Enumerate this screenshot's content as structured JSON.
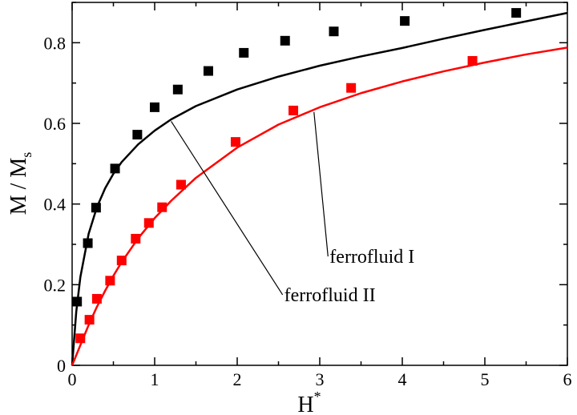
{
  "chart_data": {
    "type": "scatter",
    "xlabel": "H",
    "xlabel_sup": "*",
    "ylabel": "M / M",
    "ylabel_sub": "s",
    "xlim": [
      0,
      6
    ],
    "ylim": [
      0,
      0.9
    ],
    "xticks": [
      0,
      1,
      2,
      3,
      4,
      5,
      6
    ],
    "yticks": [
      0,
      0.2,
      0.4,
      0.6,
      0.8
    ],
    "xtick_labels": [
      "0",
      "1",
      "2",
      "3",
      "4",
      "5",
      "6"
    ],
    "ytick_labels": [
      "0",
      "0.2",
      "0.4",
      "0.6",
      "0.8"
    ],
    "grid": false,
    "series": [
      {
        "color": "#000000",
        "points": {
          "x": [
            0.06,
            0.19,
            0.29,
            0.52,
            0.79,
            1.0,
            1.28,
            1.65,
            2.08,
            2.58,
            3.17,
            4.03,
            5.38
          ],
          "y": [
            0.158,
            0.303,
            0.391,
            0.488,
            0.572,
            0.64,
            0.684,
            0.73,
            0.775,
            0.805,
            0.828,
            0.854,
            0.874
          ]
        },
        "curve": {
          "x": [
            0,
            0.05,
            0.1,
            0.2,
            0.3,
            0.4,
            0.5,
            0.6,
            0.8,
            1.0,
            1.2,
            1.5,
            2.0,
            2.5,
            3.0,
            3.5,
            4.0,
            4.5,
            5.0,
            5.5,
            6.0
          ],
          "y": [
            0,
            0.133,
            0.219,
            0.326,
            0.392,
            0.439,
            0.475,
            0.504,
            0.548,
            0.582,
            0.61,
            0.643,
            0.684,
            0.716,
            0.743,
            0.766,
            0.787,
            0.81,
            0.832,
            0.853,
            0.874
          ]
        }
      },
      {
        "color": "#ff0000",
        "points": {
          "x": [
            0.1,
            0.21,
            0.3,
            0.46,
            0.6,
            0.77,
            0.93,
            1.09,
            1.32,
            1.98,
            2.68,
            3.38,
            4.85
          ],
          "y": [
            0.067,
            0.113,
            0.165,
            0.21,
            0.26,
            0.314,
            0.353,
            0.392,
            0.448,
            0.554,
            0.632,
            0.688,
            0.755
          ]
        },
        "curve": {
          "x": [
            0,
            0.1,
            0.2,
            0.3,
            0.4,
            0.5,
            0.6,
            0.8,
            1.0,
            1.2,
            1.5,
            2.0,
            2.5,
            3.0,
            3.5,
            4.0,
            4.5,
            5.0,
            5.5,
            6.0
          ],
          "y": [
            0,
            0.05,
            0.1,
            0.145,
            0.185,
            0.222,
            0.256,
            0.315,
            0.365,
            0.408,
            0.465,
            0.54,
            0.597,
            0.64,
            0.675,
            0.704,
            0.729,
            0.751,
            0.771,
            0.788
          ]
        }
      }
    ],
    "annotations": [
      {
        "text": "ferrofluid I",
        "anchor_x": 3.1,
        "anchor_y": 0.27,
        "target_x": 2.93,
        "target_y": 0.628
      },
      {
        "text": "ferrofluid II",
        "anchor_x": 2.55,
        "anchor_y": 0.175,
        "target_x": 1.2,
        "target_y": 0.605
      }
    ]
  }
}
